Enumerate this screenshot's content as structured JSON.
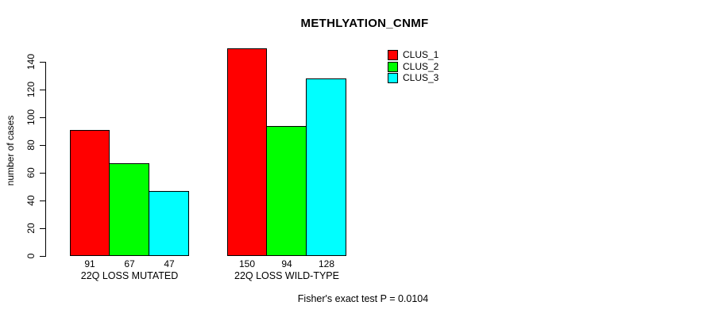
{
  "chart_data": {
    "type": "bar",
    "title": "METHLYATION_CNMF",
    "ylabel": "number of cases",
    "xlabel": "",
    "ylim": [
      0,
      150
    ],
    "yticks": [
      0,
      20,
      40,
      60,
      80,
      100,
      120,
      140
    ],
    "categories": [
      "22Q LOSS MUTATED",
      "22Q LOSS WILD-TYPE"
    ],
    "series": [
      {
        "name": "CLUS_1",
        "color": "#ff0000",
        "values": [
          91,
          150
        ]
      },
      {
        "name": "CLUS_2",
        "color": "#00ff00",
        "values": [
          67,
          94
        ]
      },
      {
        "name": "CLUS_3",
        "color": "#00ffff",
        "values": [
          47,
          128
        ]
      }
    ],
    "bar_value_labels": [
      [
        "91",
        "67",
        "47"
      ],
      [
        "150",
        "94",
        "128"
      ]
    ],
    "legend": {
      "position": "top-right",
      "entries": [
        {
          "label": "CLUS_1",
          "color": "#ff0000"
        },
        {
          "label": "CLUS_2",
          "color": "#00ff00"
        },
        {
          "label": "CLUS_3",
          "color": "#00ffff"
        }
      ]
    },
    "grid": false,
    "footnote": "Fisher's exact test P = 0.0104"
  }
}
